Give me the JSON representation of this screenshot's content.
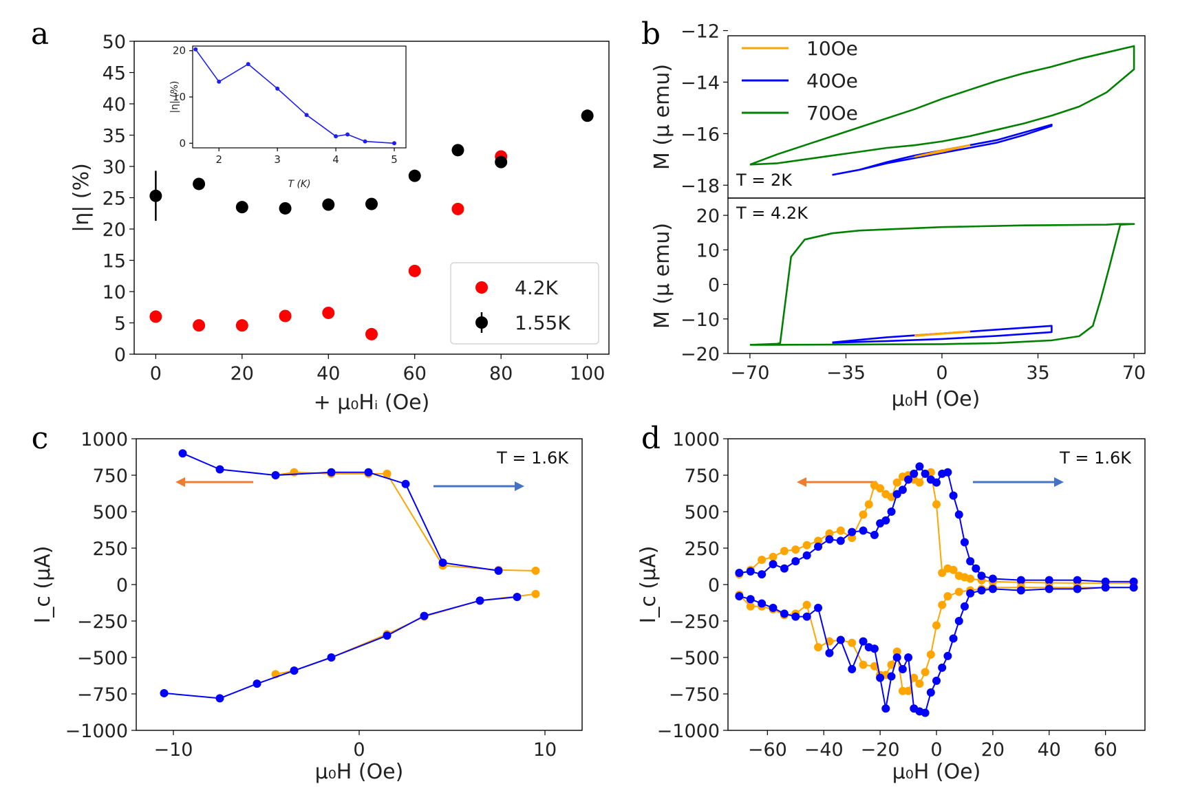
{
  "panel_labels": [
    "a",
    "b",
    "c",
    "d"
  ],
  "colors": {
    "red": "#ff0000",
    "black": "#000000",
    "inset_blue": "#1f1ff0",
    "orange": "#ffa500",
    "blue": "#0000ff",
    "green": "#008000",
    "arrow_orange": "#ed7d31",
    "arrow_blue": "#4472c4"
  },
  "chart_data": [
    {
      "id": "a",
      "type": "scatter",
      "xlabel": "+ μ₀Hᵢ (Oe)",
      "ylabel": "|η| (%)",
      "xlim": [
        -5,
        105
      ],
      "ylim": [
        0,
        50
      ],
      "x_ticks": [
        "0",
        "20",
        "40",
        "60",
        "80",
        "100"
      ],
      "y_ticks": [
        "0",
        "5",
        "10",
        "15",
        "20",
        "25",
        "30",
        "35",
        "40",
        "45",
        "50"
      ],
      "legend": [
        "4.2K",
        "1.55K"
      ],
      "series": [
        {
          "name": "4.2K",
          "x": [
            0,
            10,
            20,
            30,
            40,
            50,
            60,
            70,
            80
          ],
          "y": [
            6,
            4.6,
            4.6,
            6.1,
            6.6,
            3.2,
            13.3,
            23.2,
            31.6
          ]
        },
        {
          "name": "1.55K",
          "x": [
            0,
            10,
            20,
            30,
            40,
            50,
            60,
            70,
            80,
            100
          ],
          "y": [
            25.3,
            27.2,
            23.5,
            23.3,
            23.9,
            24.0,
            28.5,
            32.6,
            30.7,
            38.1
          ],
          "yerr_first": 4
        }
      ],
      "inset": {
        "type": "line",
        "xlabel": "T (K)",
        "ylabel": "|η| (%)",
        "xlim": [
          1.55,
          5.2
        ],
        "ylim": [
          -1,
          21
        ],
        "x_ticks": [
          "2",
          "3",
          "4",
          "5"
        ],
        "y_ticks": [
          "0",
          "10",
          "20"
        ],
        "x": [
          1.6,
          2.0,
          2.5,
          3.0,
          3.5,
          4.0,
          4.2,
          4.5,
          5.0
        ],
        "y": [
          20.3,
          13.3,
          17.1,
          11.8,
          6.1,
          1.5,
          1.9,
          0.4,
          0.0
        ]
      }
    },
    {
      "id": "b",
      "type": "line",
      "xlabel": "μ₀H (Oe)",
      "x_ticks": [
        "−70",
        "−35",
        "0",
        "35",
        "70"
      ],
      "legend": [
        "10Oe",
        "40Oe",
        "70Oe"
      ],
      "subplots": [
        {
          "annotation": "T = 2K",
          "ylabel": "M (μ emu)",
          "ylim": [
            -18.5,
            -12.2
          ],
          "y_ticks": [
            "−12",
            "−14",
            "−16",
            "−18"
          ],
          "series": [
            {
              "name": "10Oe",
              "x": [
                -10,
                0,
                10,
                10,
                0,
                -10
              ],
              "y": [
                -16.9,
                -16.7,
                -16.45,
                -16.45,
                -16.65,
                -16.9
              ]
            },
            {
              "name": "40Oe",
              "x": [
                -40,
                -30,
                -20,
                -10,
                0,
                10,
                20,
                30,
                40,
                40,
                30,
                20,
                10,
                0,
                -10,
                -20,
                -30,
                -40
              ],
              "y": [
                -17.6,
                -17.4,
                -17.1,
                -16.85,
                -16.65,
                -16.45,
                -16.25,
                -15.95,
                -15.65,
                -15.7,
                -16.05,
                -16.35,
                -16.55,
                -16.75,
                -16.95,
                -17.15,
                -17.4,
                -17.6
              ]
            },
            {
              "name": "70Oe",
              "x": [
                -70,
                -60,
                -50,
                -40,
                -30,
                -20,
                -10,
                0,
                10,
                20,
                30,
                40,
                50,
                60,
                70,
                70,
                60,
                50,
                40,
                30,
                20,
                10,
                0,
                -10,
                -20,
                -30,
                -40,
                -50,
                -60,
                -70
              ],
              "y": [
                -17.2,
                -16.8,
                -16.45,
                -16.1,
                -15.75,
                -15.4,
                -15.05,
                -14.65,
                -14.3,
                -13.95,
                -13.65,
                -13.4,
                -13.1,
                -12.85,
                -12.6,
                -13.5,
                -14.4,
                -14.95,
                -15.3,
                -15.6,
                -15.85,
                -16.1,
                -16.3,
                -16.45,
                -16.55,
                -16.7,
                -16.85,
                -17.0,
                -17.15,
                -17.2
              ]
            }
          ]
        },
        {
          "annotation": "T = 4.2K",
          "ylabel": "M (μ emu)",
          "ylim": [
            -20,
            25
          ],
          "y_ticks": [
            "20",
            "10",
            "0",
            "−10",
            "−20"
          ],
          "series": [
            {
              "name": "10Oe",
              "x": [
                -10,
                10,
                10,
                -10
              ],
              "y": [
                -14.8,
                -13.6,
                -13.7,
                -14.9
              ]
            },
            {
              "name": "40Oe",
              "x": [
                -40,
                -20,
                0,
                20,
                40,
                40,
                20,
                0,
                -20,
                -40
              ],
              "y": [
                -16.8,
                -15.3,
                -14.2,
                -13.1,
                -12.0,
                -13.8,
                -14.9,
                -15.8,
                -16.4,
                -16.9
              ]
            },
            {
              "name": "70Oe",
              "x": [
                -70,
                -60,
                -59,
                -55,
                -50,
                -40,
                -30,
                0,
                30,
                60,
                64,
                70,
                70,
                65,
                61,
                58,
                55,
                50,
                40,
                20,
                0,
                -30,
                -60,
                -70
              ],
              "y": [
                -17.5,
                -17.2,
                -17.0,
                8.0,
                13.0,
                14.8,
                15.6,
                16.6,
                17.1,
                17.3,
                17.5,
                17.5,
                17.5,
                17.3,
                5.0,
                -4.0,
                -12.0,
                -15.0,
                -16.2,
                -17.0,
                -17.3,
                -17.4,
                -17.5,
                -17.5
              ]
            }
          ]
        }
      ]
    },
    {
      "id": "c",
      "type": "line",
      "annotation": "T = 1.6K",
      "xlabel": "μ₀H (Oe)",
      "ylabel": "I_c (μA)",
      "xlim": [
        -12,
        12
      ],
      "ylim": [
        -1000,
        1000
      ],
      "x_ticks": [
        "−10",
        "0",
        "10"
      ],
      "y_ticks": [
        "1000",
        "750",
        "500",
        "250",
        "0",
        "−250",
        "−500",
        "−750",
        "−1000"
      ],
      "series": [
        {
          "name": "orange_pos",
          "x": [
            -4.5,
            -3.5,
            -1.5,
            0.5,
            1.5,
            4.5,
            7.5,
            9.5
          ],
          "y": [
            750,
            770,
            760,
            760,
            760,
            130,
            100,
            95
          ]
        },
        {
          "name": "blue_pos",
          "x": [
            -9.5,
            -7.5,
            -4.5,
            -1.5,
            0.5,
            2.5,
            4.5,
            7.5
          ],
          "y": [
            900,
            790,
            750,
            770,
            770,
            690,
            150,
            95
          ]
        },
        {
          "name": "orange_neg",
          "x": [
            -4.5,
            -3.5,
            -1.5,
            1.5,
            3.5,
            6.5,
            9.5
          ],
          "y": [
            -615,
            -590,
            -500,
            -340,
            -220,
            -110,
            -65
          ]
        },
        {
          "name": "blue_neg",
          "x": [
            -10.5,
            -7.5,
            -5.5,
            -3.5,
            -1.5,
            1.5,
            3.5,
            6.5,
            8.5
          ],
          "y": [
            -745,
            -780,
            -680,
            -590,
            -500,
            -350,
            -215,
            -110,
            -85
          ]
        }
      ]
    },
    {
      "id": "d",
      "type": "line",
      "annotation": "T = 1.6K",
      "xlabel": "μ₀H (Oe)",
      "ylabel": "I_c (μA)",
      "xlim": [
        -74,
        74
      ],
      "ylim": [
        -1000,
        1000
      ],
      "x_ticks": [
        "−60",
        "−40",
        "−20",
        "0",
        "20",
        "40",
        "60"
      ],
      "y_ticks": [
        "1000",
        "750",
        "500",
        "250",
        "0",
        "−250",
        "−500",
        "−750",
        "−1000"
      ],
      "series": [
        {
          "name": "orange_pos",
          "x": [
            -70,
            -66,
            -62,
            -58,
            -54,
            -50,
            -46,
            -42,
            -38,
            -34,
            -30,
            -26,
            -24,
            -22,
            -20,
            -18,
            -16,
            -14,
            -12,
            -10,
            -8,
            -6,
            -4,
            -2,
            0,
            2,
            4,
            6,
            8,
            10,
            12,
            16,
            20,
            30,
            40,
            50,
            60,
            70
          ],
          "y": [
            70,
            100,
            170,
            190,
            230,
            240,
            270,
            300,
            350,
            370,
            320,
            480,
            550,
            680,
            660,
            620,
            600,
            700,
            740,
            750,
            720,
            700,
            760,
            770,
            550,
            80,
            110,
            100,
            60,
            50,
            40,
            30,
            20,
            15,
            12,
            10,
            10,
            10
          ]
        },
        {
          "name": "blue_pos",
          "x": [
            -70,
            -66,
            -62,
            -58,
            -54,
            -50,
            -46,
            -42,
            -38,
            -34,
            -30,
            -26,
            -22,
            -20,
            -18,
            -16,
            -14,
            -12,
            -10,
            -8,
            -6,
            -4,
            -2,
            0,
            2,
            4,
            6,
            8,
            10,
            12,
            14,
            16,
            20,
            30,
            40,
            50,
            60,
            70
          ],
          "y": [
            80,
            90,
            70,
            140,
            110,
            160,
            200,
            260,
            310,
            300,
            360,
            370,
            340,
            420,
            440,
            500,
            620,
            650,
            720,
            760,
            810,
            760,
            720,
            700,
            760,
            770,
            610,
            480,
            290,
            160,
            110,
            60,
            40,
            30,
            30,
            30,
            20,
            20
          ]
        },
        {
          "name": "orange_neg",
          "x": [
            -70,
            -66,
            -62,
            -58,
            -54,
            -50,
            -46,
            -42,
            -38,
            -34,
            -30,
            -26,
            -22,
            -20,
            -18,
            -16,
            -14,
            -12,
            -10,
            -8,
            -6,
            -4,
            -2,
            0,
            2,
            4,
            8,
            12,
            16,
            20,
            30,
            40,
            50,
            60,
            70
          ],
          "y": [
            -70,
            -150,
            -150,
            -170,
            -210,
            -200,
            -140,
            -430,
            -390,
            -380,
            -400,
            -550,
            -560,
            -620,
            -620,
            -550,
            -460,
            -730,
            -730,
            -640,
            -680,
            -600,
            -480,
            -280,
            -140,
            -80,
            -50,
            -40,
            -30,
            -20,
            -20,
            -20,
            -20,
            -20,
            -20
          ]
        },
        {
          "name": "blue_neg",
          "x": [
            -70,
            -66,
            -62,
            -58,
            -54,
            -50,
            -46,
            -42,
            -38,
            -34,
            -30,
            -26,
            -24,
            -22,
            -20,
            -18,
            -16,
            -14,
            -12,
            -10,
            -8,
            -6,
            -4,
            -2,
            0,
            2,
            4,
            6,
            8,
            10,
            12,
            16,
            20,
            30,
            40,
            50,
            60,
            70
          ],
          "y": [
            -80,
            -100,
            -130,
            -160,
            -200,
            -220,
            -220,
            -160,
            -470,
            -380,
            -580,
            -390,
            -430,
            -440,
            -640,
            -850,
            -630,
            -500,
            -580,
            -500,
            -850,
            -870,
            -880,
            -740,
            -660,
            -570,
            -490,
            -370,
            -250,
            -150,
            -60,
            -40,
            -30,
            -40,
            -30,
            -30,
            -20,
            -20
          ]
        }
      ]
    }
  ]
}
